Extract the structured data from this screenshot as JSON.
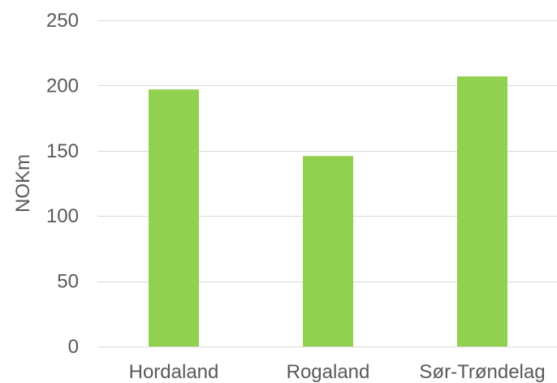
{
  "chart_data": {
    "type": "bar",
    "categories": [
      "Hordaland",
      "Rogaland",
      "Sør-Trøndelag"
    ],
    "series": [
      {
        "values": [
          197,
          146,
          207
        ],
        "color": "#92d050"
      }
    ],
    "ylabel": "NOKm",
    "xlabel": "",
    "title": "",
    "ylim": [
      0,
      250
    ],
    "yticks": [
      0,
      50,
      100,
      150,
      200,
      250
    ],
    "grid": true,
    "legend": "none"
  }
}
